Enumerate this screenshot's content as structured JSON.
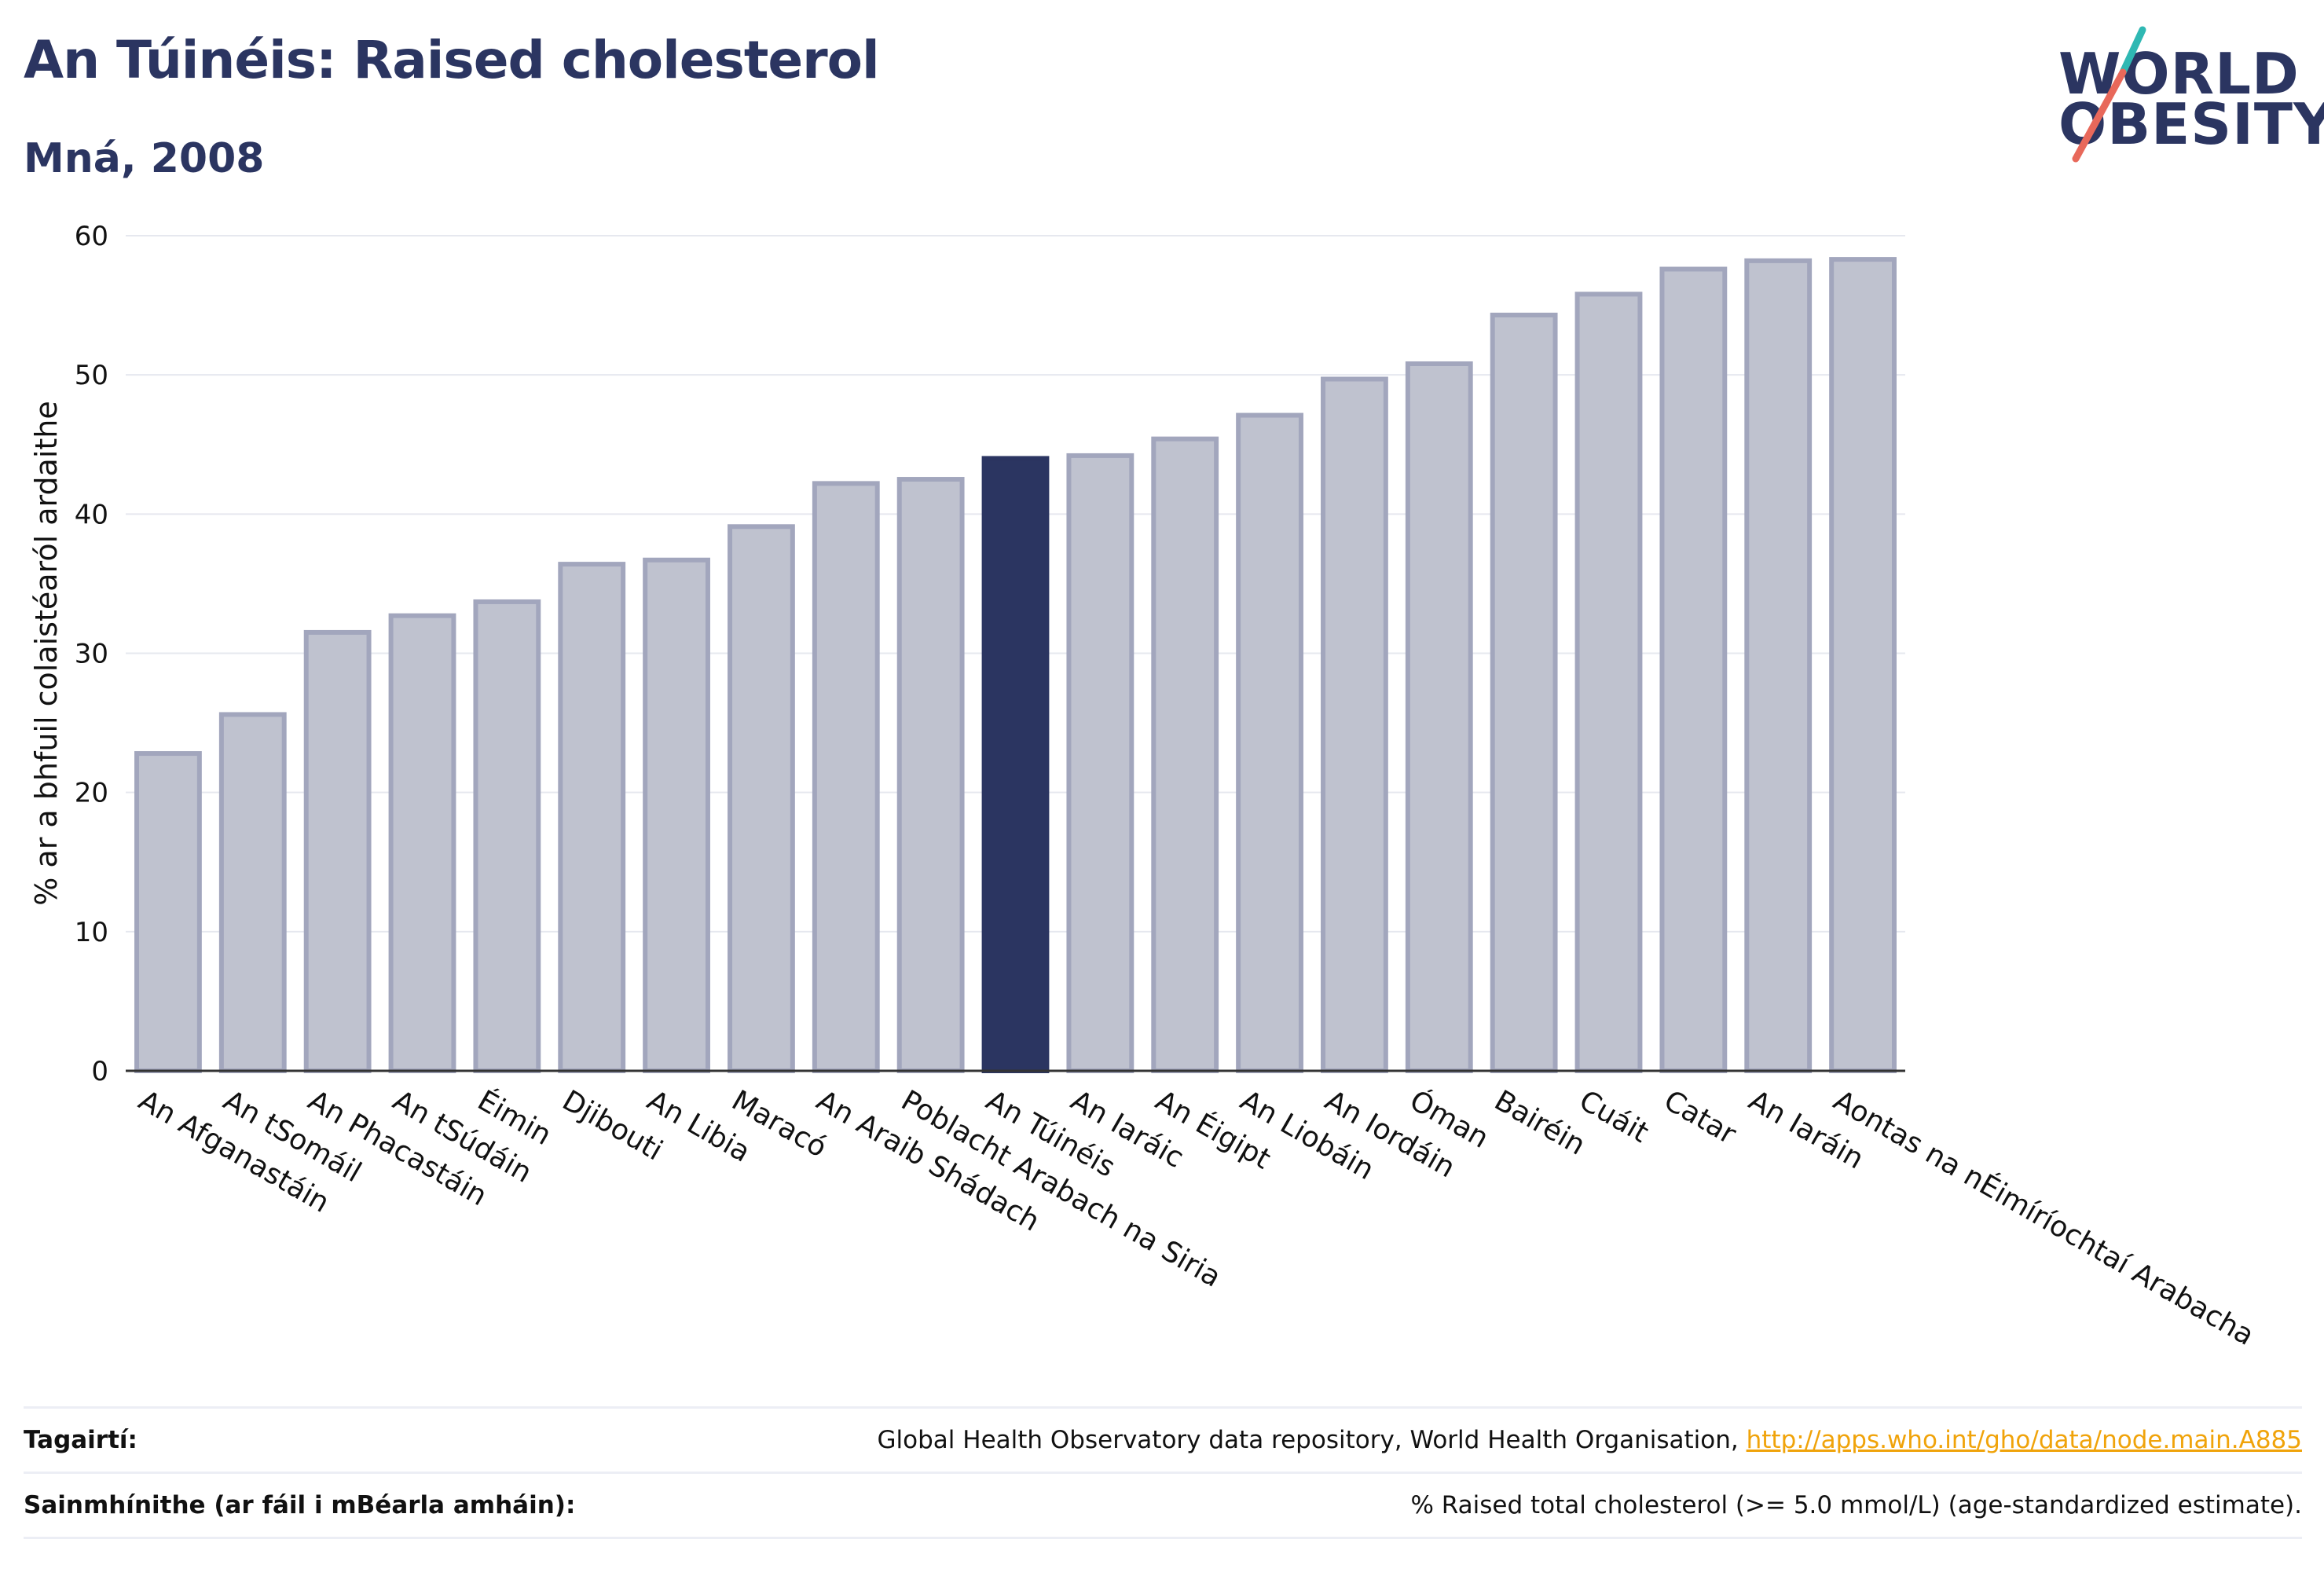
{
  "header": {
    "title": "An Túinéis: Raised cholesterol",
    "subtitle": "Mná, 2008"
  },
  "logo": {
    "line1": "WORLD",
    "line2": "OBESITY",
    "colors": {
      "text": "#2b3561",
      "slash_top": "#2fb8b3",
      "slash_bottom": "#e8685a"
    }
  },
  "chart_data": {
    "type": "bar",
    "title": "An Túinéis: Raised cholesterol",
    "subtitle": "Mná, 2008",
    "xlabel": "",
    "ylabel": "% ar a bhfuil colaistéaról ardaithe",
    "ylim": [
      0,
      60
    ],
    "yticks": [
      0,
      10,
      20,
      30,
      40,
      50,
      60
    ],
    "grid": true,
    "categories": [
      "An Afganastáin",
      "An tSomáil",
      "An Phacastáin",
      "An tSúdáin",
      "Éimin",
      "Djibouti",
      "An Libia",
      "Maracó",
      "An Araib Shádach",
      "Poblacht Arabach na Siria",
      "An Túinéis",
      "An Iaráic",
      "An Éigipt",
      "An Liobáin",
      "An Iordáin",
      "Óman",
      "Bairéin",
      "Cuáit",
      "Catar",
      "An Iaráin",
      "Aontas na nÉimíríochtaí Arabacha"
    ],
    "values": [
      22.8,
      25.6,
      31.5,
      32.7,
      33.7,
      36.4,
      36.7,
      39.1,
      42.2,
      42.5,
      44.0,
      44.2,
      45.4,
      47.1,
      49.7,
      50.8,
      54.3,
      55.8,
      57.6,
      58.2,
      58.3
    ],
    "highlight": "An Túinéis",
    "colors": {
      "bar": "#bfc2cf",
      "bar_edge": "#a2a6bd",
      "highlight": "#2b3561"
    }
  },
  "footer": {
    "references_label": "Tagairtí:",
    "references_text": "Global Health Observatory data repository, World Health Organisation, ",
    "references_link": "http://apps.who.int/gho/data/node.main.A885",
    "definitions_label": "Sainmhínithe (ar fáil i mBéarla amháin):",
    "definitions_text": "% Raised total cholesterol (>= 5.0 mmol/L) (age-standardized estimate)."
  }
}
